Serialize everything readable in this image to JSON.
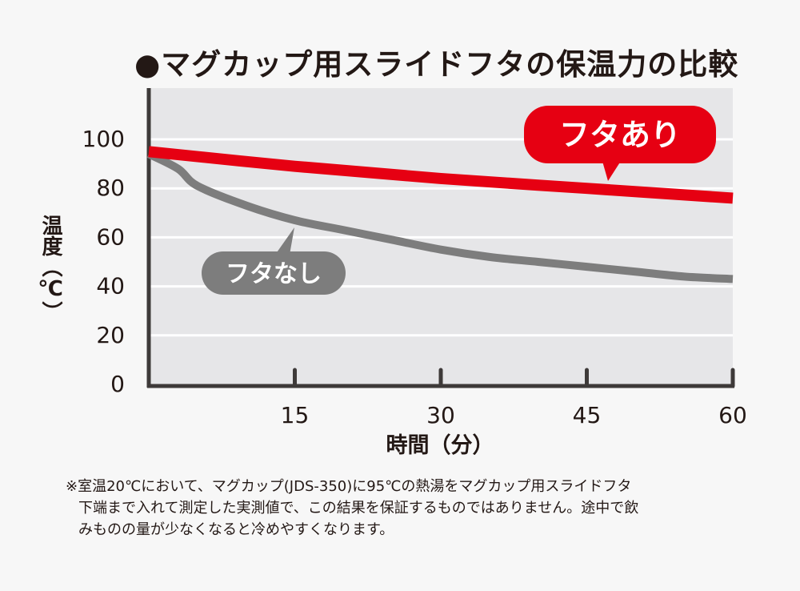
{
  "chart_data": {
    "type": "line",
    "title": "●マグカップ用スライドフタの保温力の比較",
    "xlabel": "時間（分）",
    "ylabel": "温度（℃）",
    "xlim": [
      0,
      60
    ],
    "ylim": [
      0,
      100
    ],
    "x_ticks": [
      "15",
      "30",
      "45",
      "60"
    ],
    "y_ticks": [
      "0",
      "20",
      "40",
      "60",
      "80",
      "100"
    ],
    "grid": true,
    "series": [
      {
        "name": "フタあり",
        "color": "#e60012",
        "x": [
          0,
          15,
          30,
          45,
          60
        ],
        "y": [
          95,
          89,
          84,
          80,
          76
        ]
      },
      {
        "name": "フタなし",
        "color": "#7d7d7d",
        "x": [
          0,
          3,
          5,
          10,
          15,
          20,
          25,
          30,
          35,
          40,
          45,
          50,
          55,
          60
        ],
        "y": [
          94,
          88,
          81,
          73,
          67,
          63,
          59,
          55,
          52,
          50,
          48,
          46,
          44,
          43
        ]
      }
    ]
  },
  "footnote": [
    "※室温20℃において、マグカップ(JDS-350)に95℃の熱湯をマグカップ用スライドフタ",
    "下端まで入れて測定した実測値で、この結果を保証するものではありません。途中で飲",
    "みものの量が少なくなると冷めやすくなります。"
  ]
}
